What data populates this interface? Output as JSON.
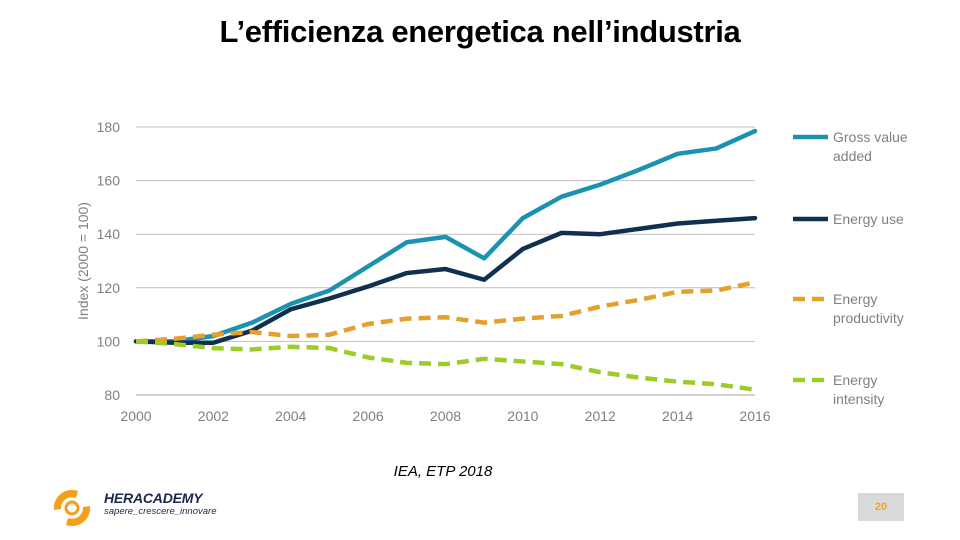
{
  "slide": {
    "title": "L’efficienza energetica nell’industria",
    "source": "IEA, ETP 2018",
    "brand": {
      "name": "HERACADEMY",
      "tagline": "sapere_crescere_innovare"
    },
    "page_number": "20"
  },
  "colors": {
    "gross_value_added": "#1b93b0",
    "energy_use": "#10304f",
    "energy_productivity": "#e3a02c",
    "energy_intensity": "#9ccb2a",
    "axis_text": "#7f7f7f",
    "grid": "#bfbfbf",
    "logo_orange": "#f5a01a"
  },
  "chart_data": {
    "type": "line",
    "title": "",
    "xlabel": "",
    "ylabel": "Index (2000 = 100)",
    "xlim": [
      2000,
      2016
    ],
    "ylim": [
      80,
      180
    ],
    "xticks": [
      2000,
      2002,
      2004,
      2006,
      2008,
      2010,
      2012,
      2014,
      2016
    ],
    "yticks": [
      80,
      100,
      120,
      140,
      160,
      180
    ],
    "grid": "horizontal",
    "legend_position": "right",
    "x": [
      2000,
      2001,
      2002,
      2003,
      2004,
      2005,
      2006,
      2007,
      2008,
      2009,
      2010,
      2011,
      2012,
      2013,
      2014,
      2015,
      2016
    ],
    "series": [
      {
        "name": "Gross value added",
        "style": "solid",
        "color": "#1b93b0",
        "values": [
          100,
          100,
          102,
          107,
          114,
          119,
          128,
          137,
          139,
          131,
          146,
          154,
          158.5,
          164,
          170,
          172,
          178.5
        ]
      },
      {
        "name": "Energy use",
        "style": "solid",
        "color": "#10304f",
        "values": [
          100,
          99.5,
          99.5,
          104,
          112,
          116,
          120.5,
          125.5,
          127,
          123,
          134.5,
          140.5,
          140,
          142,
          144,
          145,
          146
        ]
      },
      {
        "name": "Energy productivity",
        "style": "dashed",
        "color": "#e3a02c",
        "values": [
          100,
          101,
          102.5,
          103.5,
          102,
          102.5,
          106.5,
          108.5,
          109,
          107,
          108.5,
          109.5,
          113,
          115.5,
          118.5,
          119,
          122
        ]
      },
      {
        "name": "Energy intensity",
        "style": "dashed",
        "color": "#9ccb2a",
        "values": [
          100,
          99,
          97.5,
          97,
          98,
          97.5,
          94,
          92,
          91.5,
          93.5,
          92.5,
          91.5,
          88.5,
          86.5,
          85,
          84,
          82
        ]
      }
    ]
  }
}
